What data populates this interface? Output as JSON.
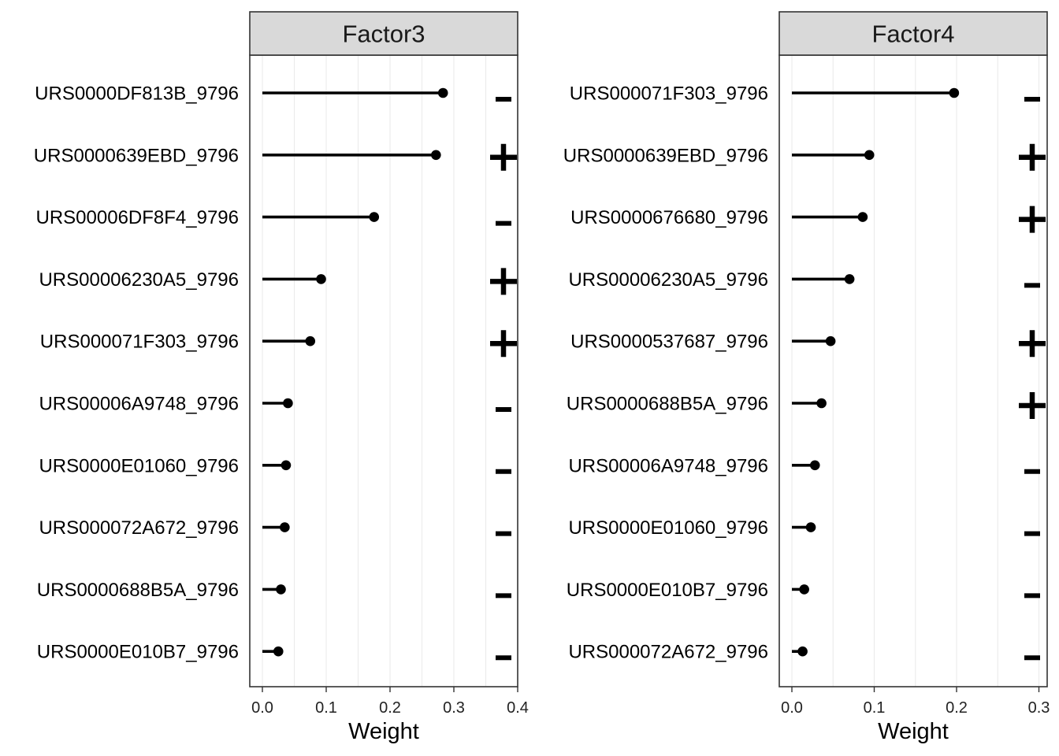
{
  "chart_data": [
    {
      "type": "lollipop",
      "facet": "Factor3",
      "xlabel": "Weight",
      "xlim": [
        0,
        0.4
      ],
      "x_ticks": [
        0.0,
        0.1,
        0.2,
        0.3,
        0.4
      ],
      "x_tick_labels": [
        "0.0",
        "0.1",
        "0.2",
        "0.3",
        "0.4"
      ],
      "grid": "vertical",
      "rows": [
        {
          "feature": "URS0000DF813B_9796",
          "weight": 0.283,
          "sign": "−"
        },
        {
          "feature": "URS0000639EBD_9796",
          "weight": 0.272,
          "sign": "+"
        },
        {
          "feature": "URS00006DF8F4_9796",
          "weight": 0.175,
          "sign": "−"
        },
        {
          "feature": "URS00006230A5_9796",
          "weight": 0.092,
          "sign": "+"
        },
        {
          "feature": "URS000071F303_9796",
          "weight": 0.075,
          "sign": "+"
        },
        {
          "feature": "URS00006A9748_9796",
          "weight": 0.04,
          "sign": "−"
        },
        {
          "feature": "URS0000E01060_9796",
          "weight": 0.037,
          "sign": "−"
        },
        {
          "feature": "URS000072A672_9796",
          "weight": 0.035,
          "sign": "−"
        },
        {
          "feature": "URS0000688B5A_9796",
          "weight": 0.029,
          "sign": "−"
        },
        {
          "feature": "URS0000E010B7_9796",
          "weight": 0.025,
          "sign": "−"
        }
      ]
    },
    {
      "type": "lollipop",
      "facet": "Factor4",
      "xlabel": "Weight",
      "xlim": [
        0,
        0.3
      ],
      "x_ticks": [
        0.0,
        0.1,
        0.2,
        0.3
      ],
      "x_tick_labels": [
        "0.0",
        "0.1",
        "0.2",
        "0.3"
      ],
      "grid": "vertical",
      "rows": [
        {
          "feature": "URS000071F303_9796",
          "weight": 0.197,
          "sign": "−"
        },
        {
          "feature": "URS0000639EBD_9796",
          "weight": 0.094,
          "sign": "+"
        },
        {
          "feature": "URS0000676680_9796",
          "weight": 0.086,
          "sign": "+"
        },
        {
          "feature": "URS00006230A5_9796",
          "weight": 0.07,
          "sign": "−"
        },
        {
          "feature": "URS0000537687_9796",
          "weight": 0.047,
          "sign": "+"
        },
        {
          "feature": "URS0000688B5A_9796",
          "weight": 0.036,
          "sign": "+"
        },
        {
          "feature": "URS00006A9748_9796",
          "weight": 0.028,
          "sign": "−"
        },
        {
          "feature": "URS0000E01060_9796",
          "weight": 0.023,
          "sign": "−"
        },
        {
          "feature": "URS0000E010B7_9796",
          "weight": 0.015,
          "sign": "−"
        },
        {
          "feature": "URS000072A672_9796",
          "weight": 0.013,
          "sign": "−"
        }
      ]
    }
  ],
  "colors": {
    "strip_fill": "#d9d9d9",
    "frame": "#333333",
    "gridline": "#ebebeb",
    "stem": "#000000",
    "point": "#000000",
    "sign": "#000000"
  }
}
